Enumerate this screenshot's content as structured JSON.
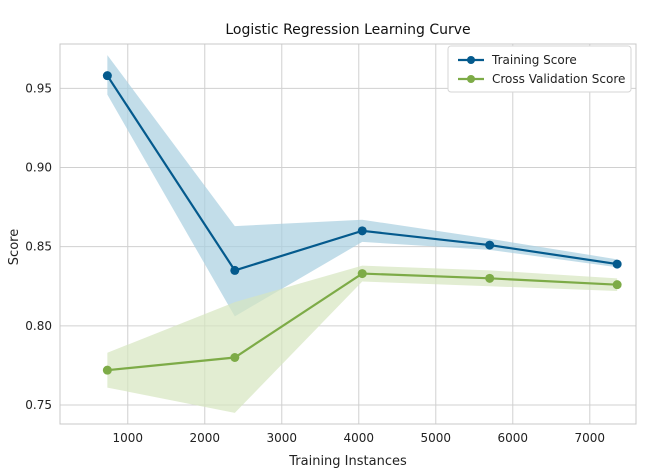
{
  "chart_data": {
    "type": "line",
    "title": "Logistic Regression Learning Curve",
    "xlabel": "Training Instances",
    "ylabel": "Score",
    "xlim": [
      120,
      7600
    ],
    "ylim": [
      0.738,
      0.978
    ],
    "x_ticks": [
      1000,
      2000,
      3000,
      4000,
      5000,
      6000,
      7000
    ],
    "y_ticks": [
      0.75,
      0.8,
      0.85,
      0.9,
      0.95
    ],
    "y_tick_labels": [
      "0.75",
      "0.80",
      "0.85",
      "0.90",
      "0.95"
    ],
    "grid": true,
    "legend_position": "top-right",
    "x": [
      735,
      2390,
      4045,
      5700,
      7355
    ],
    "series": [
      {
        "name": "Training Score",
        "color": "#045a8d",
        "band_color": "#a8cfe0",
        "values": [
          0.958,
          0.835,
          0.86,
          0.851,
          0.839
        ],
        "upper": [
          0.971,
          0.863,
          0.867,
          0.855,
          0.842
        ],
        "lower": [
          0.946,
          0.806,
          0.853,
          0.848,
          0.837
        ]
      },
      {
        "name": "Cross Validation Score",
        "color": "#7dab47",
        "band_color": "#d5e5bf",
        "values": [
          0.772,
          0.78,
          0.833,
          0.83,
          0.826
        ],
        "upper": [
          0.783,
          0.815,
          0.838,
          0.835,
          0.83
        ],
        "lower": [
          0.761,
          0.745,
          0.828,
          0.825,
          0.822
        ]
      }
    ]
  }
}
